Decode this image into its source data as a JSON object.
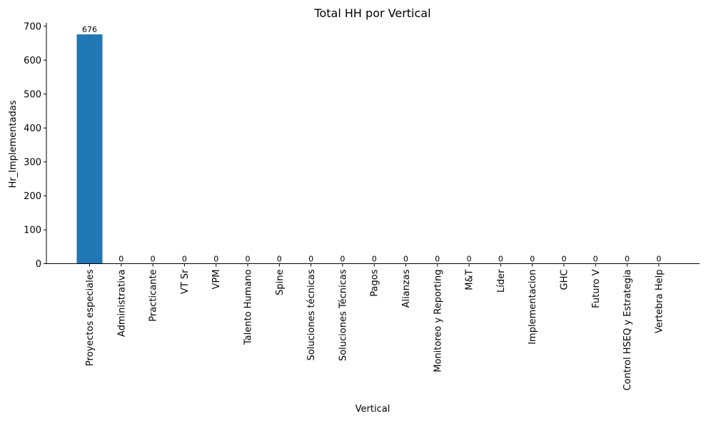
{
  "chart_data": {
    "type": "bar",
    "title": "Total HH por Vertical",
    "xlabel": "Vertical",
    "ylabel": "Hr_Implementadas",
    "ylim": [
      0,
      710
    ],
    "yticks": [
      0,
      100,
      200,
      300,
      400,
      500,
      600,
      700
    ],
    "categories": [
      "Proyectos especiales",
      "Administrativa",
      "Practicante",
      "VT Sr",
      "VPM",
      "Talento Humano",
      "Spine",
      "Soluciones técnicas",
      "Soluciones Técnicas",
      "Pagos",
      "Alianzas",
      "Monitoreo y Reporting",
      "M&T",
      "Líder",
      "Implementacion",
      "GHC",
      "Futuro V",
      "Control HSEQ y Estrategia",
      "Vertebra Help"
    ],
    "values": [
      676,
      0,
      0,
      0,
      0,
      0,
      0,
      0,
      0,
      0,
      0,
      0,
      0,
      0,
      0,
      0,
      0,
      0,
      0
    ],
    "data_labels": [
      "676",
      "0",
      "0",
      "0",
      "0",
      "0",
      "0",
      "0",
      "0",
      "0",
      "0",
      "0",
      "0",
      "0",
      "0",
      "0",
      "0",
      "0",
      "0"
    ],
    "bar_color": "#1f77b4",
    "grid": false
  }
}
